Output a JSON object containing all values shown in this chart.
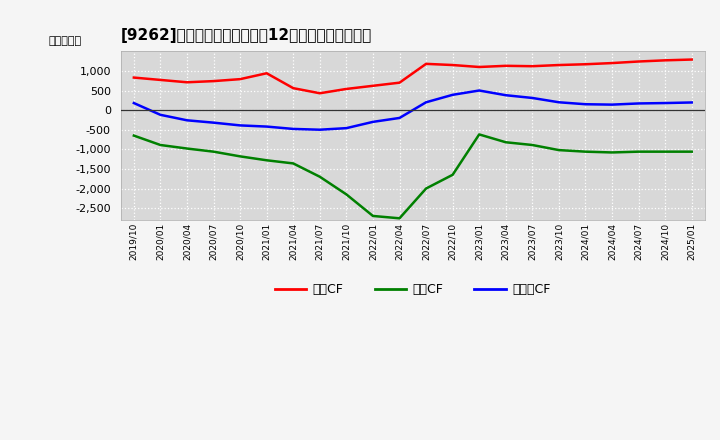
{
  "title": "[9262]　キャッシュフローの12か月移動合計の推移",
  "ylabel": "（百万円）",
  "background_color": "#f5f5f5",
  "plot_bg_color": "#d8d8d8",
  "ylim": [
    -2800,
    1500
  ],
  "yticks": [
    -2500,
    -2000,
    -1500,
    -1000,
    -500,
    0,
    500,
    1000
  ],
  "x_labels": [
    "2019/10",
    "2020/01",
    "2020/04",
    "2020/07",
    "2020/10",
    "2021/01",
    "2021/04",
    "2021/07",
    "2021/10",
    "2022/01",
    "2022/04",
    "2022/07",
    "2022/10",
    "2023/01",
    "2023/04",
    "2023/07",
    "2023/10",
    "2024/01",
    "2024/04",
    "2024/07",
    "2024/10",
    "2025/01"
  ],
  "operating_cf": [
    830,
    770,
    710,
    740,
    790,
    940,
    560,
    430,
    540,
    620,
    700,
    1180,
    1150,
    1100,
    1130,
    1120,
    1150,
    1170,
    1200,
    1240,
    1270,
    1290
  ],
  "investing_cf": [
    -650,
    -890,
    -980,
    -1060,
    -1180,
    -1280,
    -1360,
    -1700,
    -2150,
    -2700,
    -2760,
    -2000,
    -1650,
    -620,
    -820,
    -890,
    -1020,
    -1060,
    -1080,
    -1060,
    -1060,
    -1060
  ],
  "free_cf": [
    180,
    -120,
    -260,
    -320,
    -390,
    -420,
    -480,
    -500,
    -460,
    -300,
    -200,
    200,
    390,
    500,
    380,
    310,
    200,
    150,
    140,
    170,
    180,
    195
  ],
  "operating_color": "#ff0000",
  "investing_color": "#008000",
  "free_color": "#0000ff",
  "line_width": 1.8,
  "legend_labels": [
    "営業CF",
    "投資CF",
    "フリーCF"
  ]
}
